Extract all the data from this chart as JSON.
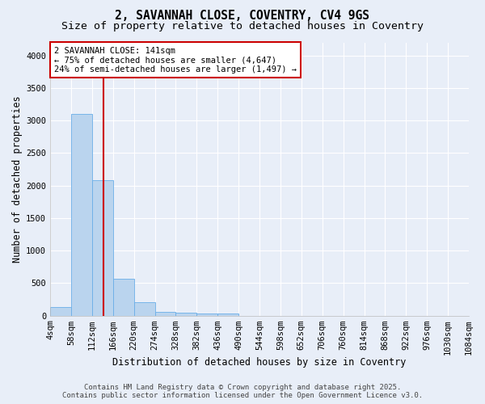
{
  "title_line1": "2, SAVANNAH CLOSE, COVENTRY, CV4 9GS",
  "title_line2": "Size of property relative to detached houses in Coventry",
  "xlabel": "Distribution of detached houses by size in Coventry",
  "ylabel": "Number of detached properties",
  "bin_edges": [
    4,
    58,
    112,
    166,
    220,
    274,
    328,
    382,
    436,
    490,
    544,
    598,
    652,
    706,
    760,
    814,
    868,
    922,
    976,
    1030,
    1084
  ],
  "bar_heights": [
    130,
    3100,
    2080,
    570,
    210,
    60,
    40,
    30,
    30,
    0,
    0,
    0,
    0,
    0,
    0,
    0,
    0,
    0,
    0,
    0
  ],
  "bar_color": "#bad4ee",
  "bar_edge_color": "#6aaee8",
  "bg_color": "#e8eef8",
  "grid_color": "#ffffff",
  "vline_x": 141,
  "vline_color": "#cc0000",
  "annotation_text": "2 SAVANNAH CLOSE: 141sqm\n← 75% of detached houses are smaller (4,647)\n24% of semi-detached houses are larger (1,497) →",
  "annotation_box_color": "#ffffff",
  "annotation_box_edge": "#cc0000",
  "ylim": [
    0,
    4200
  ],
  "yticks": [
    0,
    500,
    1000,
    1500,
    2000,
    2500,
    3000,
    3500,
    4000
  ],
  "footer_line1": "Contains HM Land Registry data © Crown copyright and database right 2025.",
  "footer_line2": "Contains public sector information licensed under the Open Government Licence v3.0.",
  "title_fontsize": 10.5,
  "subtitle_fontsize": 9.5,
  "axis_label_fontsize": 8.5,
  "tick_fontsize": 7.5,
  "annotation_fontsize": 7.5,
  "footer_fontsize": 6.5
}
